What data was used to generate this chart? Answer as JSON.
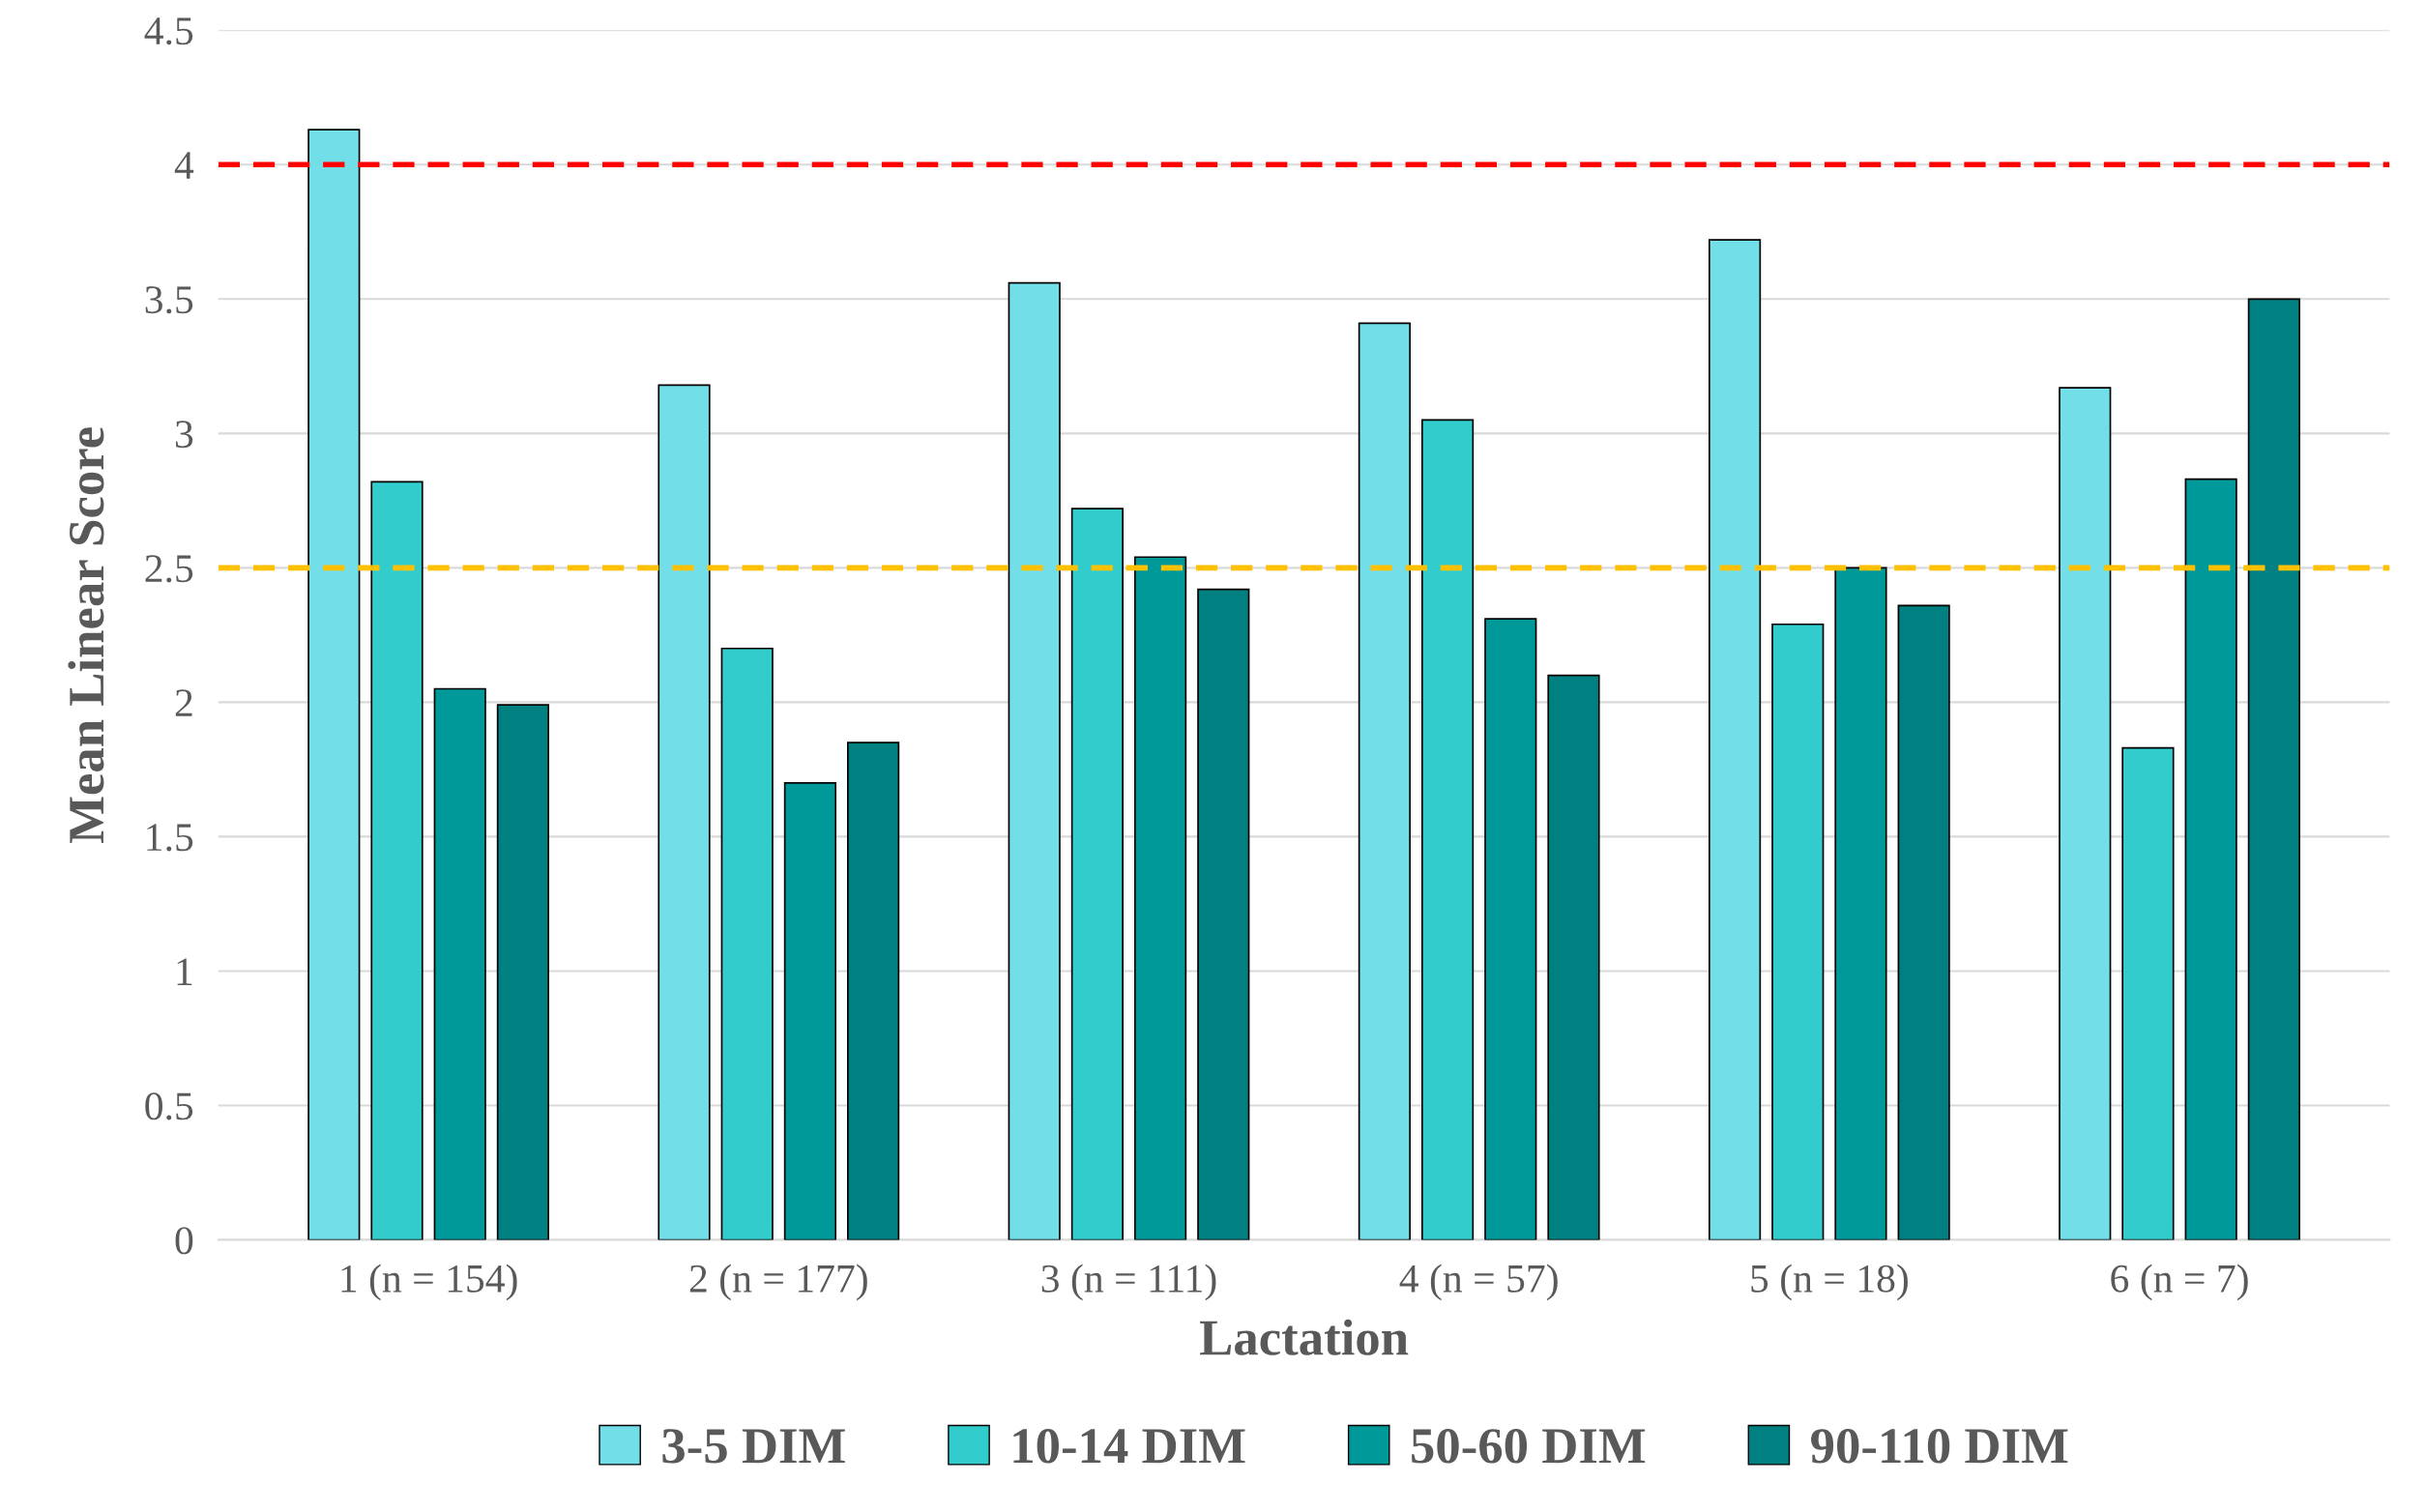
{
  "chart_data": {
    "type": "bar",
    "xlabel": "Lactation",
    "ylabel": "Mean Linear Score",
    "categories": [
      "1 (n = 154)",
      "2 (n = 177)",
      "3 (n = 111)",
      "4 (n = 57)",
      "5 (n = 18)",
      "6 (n = 7)"
    ],
    "series": [
      {
        "name": "3-5 DIM",
        "color": "#72dfe8",
        "values": [
          4.13,
          3.18,
          3.56,
          3.41,
          3.72,
          3.17
        ]
      },
      {
        "name": "10-14 DIM",
        "color": "#33cccc",
        "values": [
          2.82,
          2.2,
          2.72,
          3.05,
          2.29,
          1.83
        ]
      },
      {
        "name": "50-60 DIM",
        "color": "#009999",
        "values": [
          2.05,
          1.7,
          2.54,
          2.31,
          2.5,
          2.83
        ]
      },
      {
        "name": "90-110 DIM",
        "color": "#008080",
        "values": [
          1.99,
          1.85,
          2.42,
          2.1,
          2.36,
          3.5
        ]
      }
    ],
    "ylim": [
      0,
      4.5
    ],
    "yticks": [
      0,
      0.5,
      1,
      1.5,
      2,
      2.5,
      3,
      3.5,
      4,
      4.5
    ],
    "ref_lines": [
      {
        "axis": "y",
        "value": 4,
        "label": null,
        "color": "#ff0000",
        "line_style": "dashed"
      },
      {
        "axis": "y",
        "value": 2.5,
        "label": null,
        "color": "#ffc000",
        "line_style": "dashed"
      }
    ],
    "grid": "y",
    "legend": "bottom"
  }
}
